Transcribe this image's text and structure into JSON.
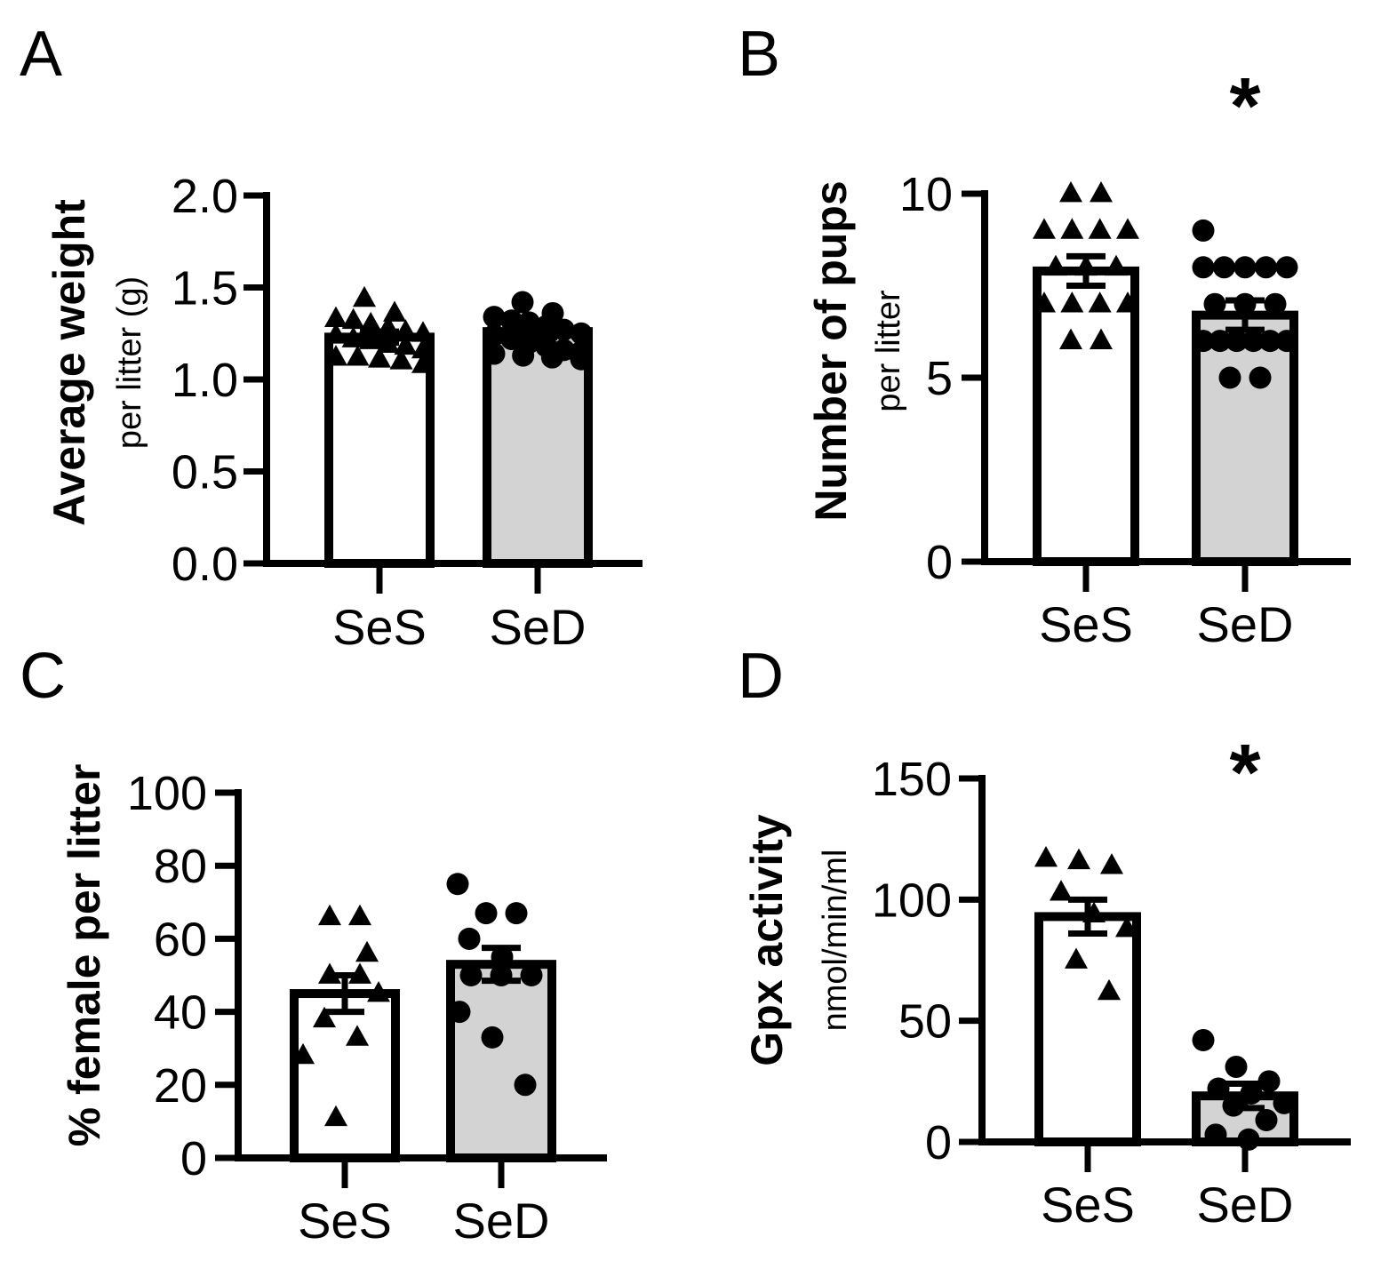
{
  "colors": {
    "ink": "#000000",
    "ses_fill": "#ffffff",
    "sed_fill": "#d3d3d3"
  },
  "chart_data": [
    {
      "panel": "A",
      "type": "bar",
      "categories": [
        "SeS",
        "SeD"
      ],
      "ylabel": "Average weight",
      "ylabel_sub": "per litter (g)",
      "ylim": [
        0,
        2.0
      ],
      "yticks": [
        0.0,
        0.5,
        1.0,
        1.5,
        2.0
      ],
      "ytick_labels": [
        "0.0",
        "0.5",
        "1.0",
        "1.5",
        "2.0"
      ],
      "means": [
        1.23,
        1.26
      ],
      "sem": [
        0.03,
        0.03
      ],
      "significance": "",
      "points": [
        [
          1.44,
          1.36,
          1.33,
          1.32,
          1.3,
          1.28,
          1.26,
          1.25,
          1.24,
          1.22,
          1.21,
          1.19,
          1.18,
          1.16,
          1.12,
          1.12,
          1.11,
          1.1,
          1.08
        ],
        [
          1.42,
          1.36,
          1.34,
          1.32,
          1.31,
          1.29,
          1.27,
          1.25,
          1.24,
          1.22,
          1.2,
          1.18,
          1.16,
          1.15,
          1.14,
          1.13,
          1.12,
          1.11
        ]
      ]
    },
    {
      "panel": "B",
      "type": "bar",
      "categories": [
        "SeS",
        "SeD"
      ],
      "ylabel": "Number of pups",
      "ylabel_sub": "per litter",
      "ylim": [
        0,
        10
      ],
      "yticks": [
        0,
        5,
        10
      ],
      "ytick_labels": [
        "0",
        "5",
        "10"
      ],
      "means": [
        7.9,
        6.7
      ],
      "sem": [
        0.4,
        0.4
      ],
      "significance": "*",
      "points": [
        [
          10,
          10,
          9,
          9,
          9,
          9,
          8,
          8,
          8,
          7,
          7,
          7,
          7,
          6,
          6
        ],
        [
          9,
          8,
          8,
          8,
          8,
          8,
          7,
          7,
          7,
          6,
          6,
          6,
          6,
          6,
          6,
          5,
          5
        ]
      ]
    },
    {
      "panel": "C",
      "type": "bar",
      "categories": [
        "SeS",
        "SeD"
      ],
      "ylabel": "% female per litter",
      "ylabel_sub": "",
      "ylim": [
        0,
        100
      ],
      "yticks": [
        0,
        20,
        40,
        60,
        80,
        100
      ],
      "ytick_labels": [
        "0",
        "20",
        "40",
        "60",
        "80",
        "100"
      ],
      "means": [
        45,
        53
      ],
      "sem": [
        5,
        4.5
      ],
      "significance": "",
      "points": [
        [
          66,
          66,
          56,
          50,
          50,
          45,
          38,
          33,
          28,
          11
        ],
        [
          75,
          67,
          67,
          60,
          55,
          50,
          50,
          50,
          40,
          33,
          20
        ]
      ]
    },
    {
      "panel": "D",
      "type": "bar",
      "categories": [
        "SeS",
        "SeD"
      ],
      "ylabel": "Gpx activity",
      "ylabel_sub": "nmol/min/ml",
      "ylim": [
        0,
        150
      ],
      "yticks": [
        0,
        50,
        100,
        150
      ],
      "ytick_labels": [
        "0",
        "50",
        "100",
        "150"
      ],
      "means": [
        93,
        19
      ],
      "sem": [
        7,
        5
      ],
      "significance": "*",
      "points": [
        [
          117,
          116,
          114,
          103,
          94,
          88,
          75,
          62
        ],
        [
          42,
          31,
          25,
          22,
          20,
          16,
          15,
          9,
          3,
          1
        ]
      ]
    }
  ]
}
